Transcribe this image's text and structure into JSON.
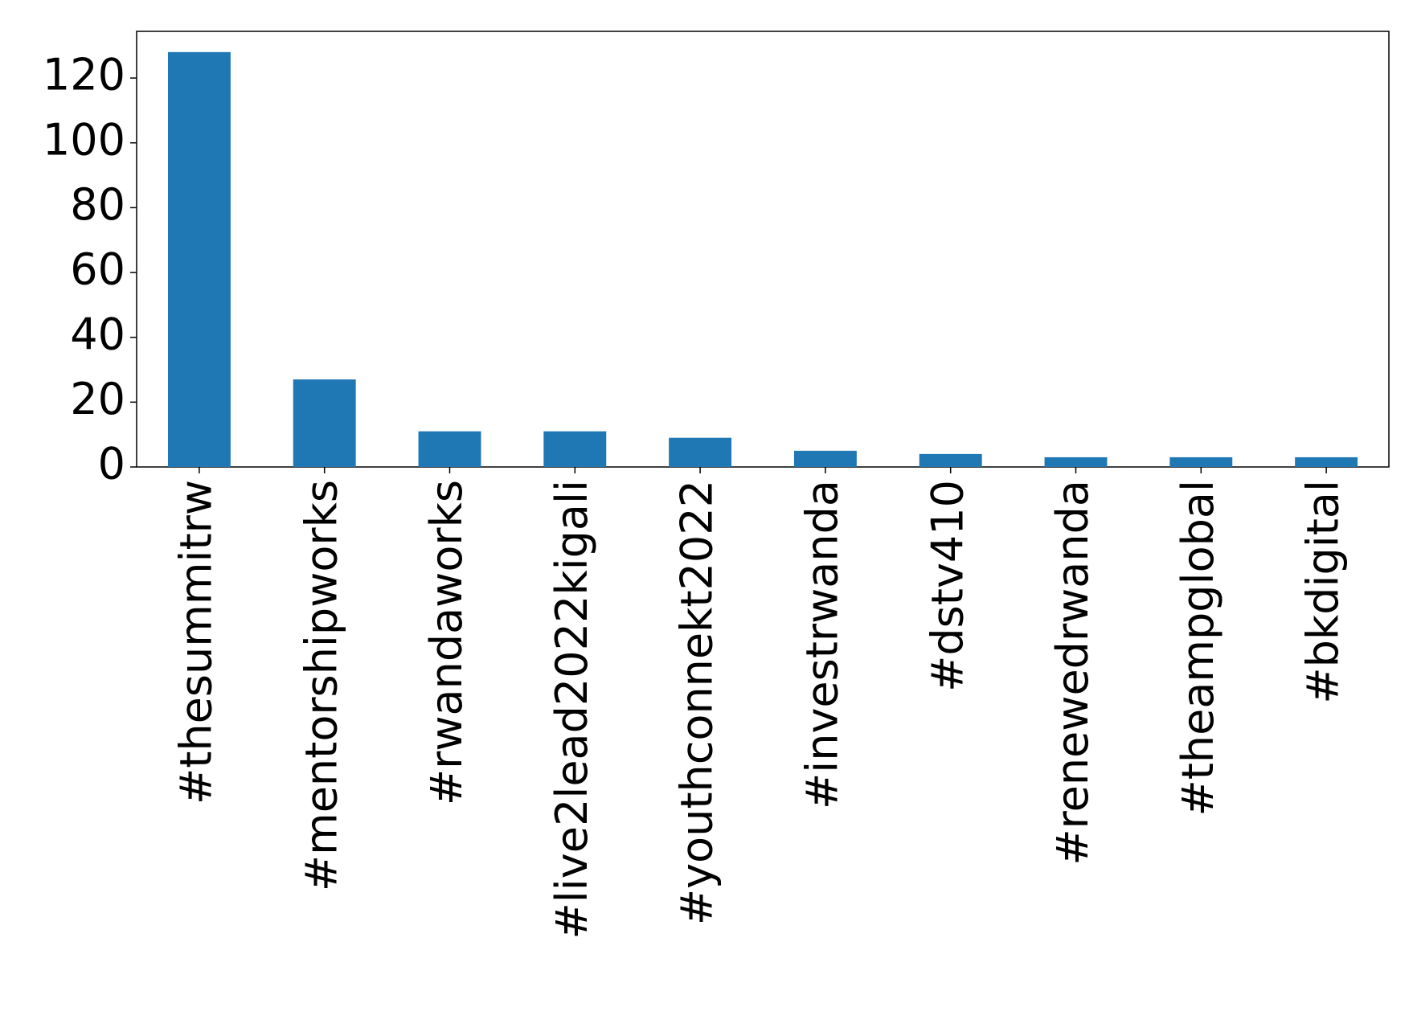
{
  "chart_data": {
    "type": "bar",
    "categories": [
      "#thesummitrw",
      "#mentorshipworks",
      "#rwandaworks",
      "#live2lead2022kigali",
      "#youthconnekt2022",
      "#investrwanda",
      "#dstv410",
      "#renewedrwanda",
      "#theampglobal",
      "#bkdigital"
    ],
    "values": [
      128,
      27,
      11,
      11,
      9,
      5,
      4,
      3,
      3,
      3
    ],
    "color": "#1f77b4",
    "ylim": [
      0,
      134.4
    ],
    "yticks": [
      0,
      20,
      40,
      60,
      80,
      100,
      120
    ],
    "grid": false
  }
}
